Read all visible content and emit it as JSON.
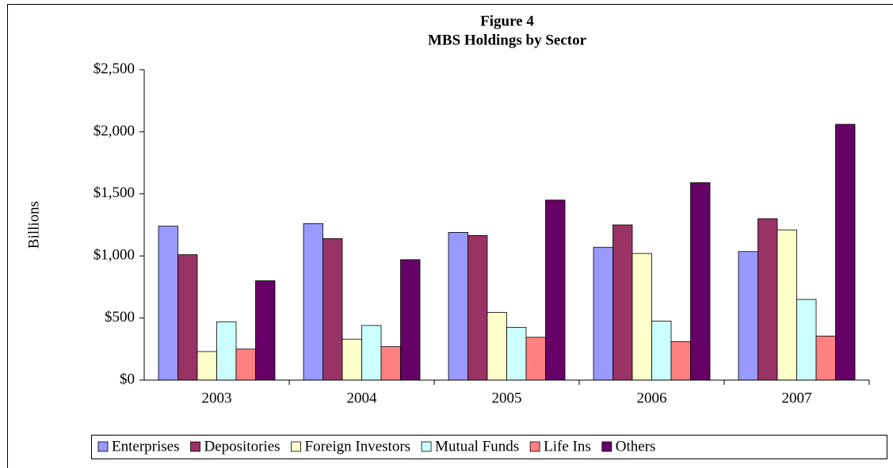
{
  "chart_data": {
    "type": "bar",
    "title": "Figure 4",
    "subtitle": "MBS Holdings by Sector",
    "y_label": "Billions",
    "categories": [
      "2003",
      "2004",
      "2005",
      "2006",
      "2007"
    ],
    "series": [
      {
        "name": "Enterprises",
        "color": "#9999ff",
        "values": [
          1240,
          1260,
          1190,
          1070,
          1035
        ]
      },
      {
        "name": "Depositories",
        "color": "#993366",
        "values": [
          1010,
          1140,
          1165,
          1250,
          1300
        ]
      },
      {
        "name": "Foreign Investors",
        "color": "#ffffcc",
        "values": [
          230,
          330,
          545,
          1020,
          1210
        ]
      },
      {
        "name": "Mutual Funds",
        "color": "#ccffff",
        "values": [
          470,
          440,
          425,
          475,
          650
        ]
      },
      {
        "name": "Life Ins",
        "color": "#ff8080",
        "values": [
          250,
          270,
          345,
          310,
          355
        ]
      },
      {
        "name": "Others",
        "color": "#660066",
        "values": [
          800,
          970,
          1450,
          1590,
          2060
        ]
      }
    ],
    "ylim": [
      0,
      2500
    ],
    "yticks": [
      {
        "value": 0,
        "label": "$0"
      },
      {
        "value": 500,
        "label": "$500"
      },
      {
        "value": 1000,
        "label": "$1,000"
      },
      {
        "value": 1500,
        "label": "$1,500"
      },
      {
        "value": 2000,
        "label": "$2,000"
      },
      {
        "value": 2500,
        "label": "$2,500"
      }
    ],
    "legend": "bottom",
    "grid": false
  }
}
